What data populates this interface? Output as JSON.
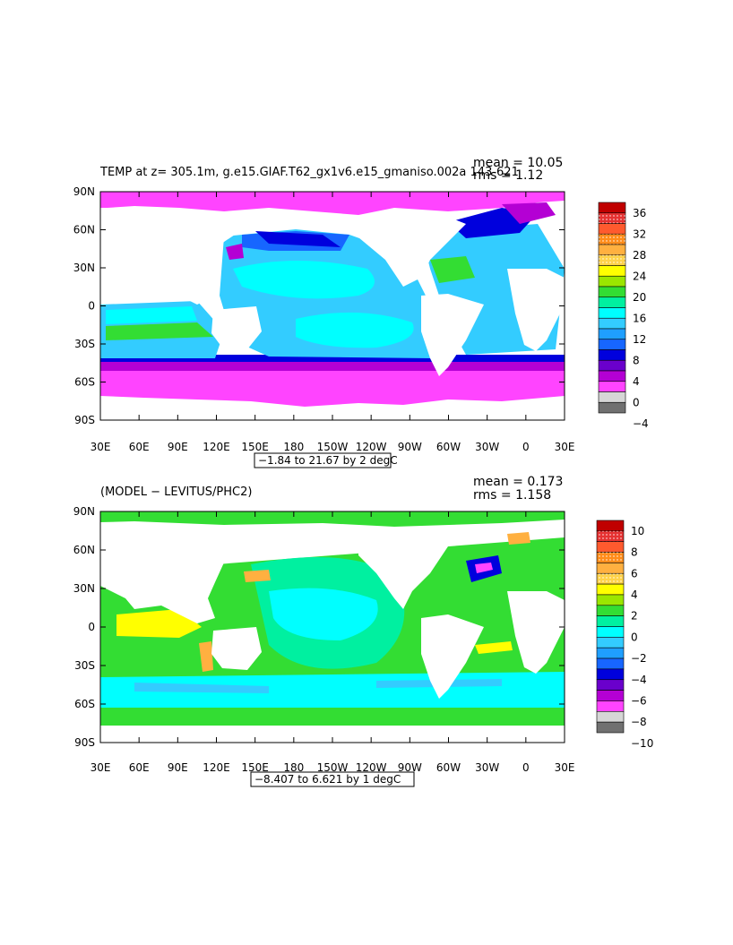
{
  "chart_data": [
    {
      "type": "heatmap",
      "title": "TEMP at z= 305.1m, g.e15.GIAF.T62_gx1v6.e15_gmaniso.002a 143-621",
      "stats": {
        "mean": "mean = 10.05",
        "rms": "rms = 1.12"
      },
      "x_ticks": [
        "30E",
        "60E",
        "90E",
        "120E",
        "150E",
        "180",
        "150W",
        "120W",
        "90W",
        "60W",
        "30W",
        "0",
        "30E"
      ],
      "y_ticks": [
        "90N",
        "60N",
        "30N",
        "0",
        "30S",
        "60S",
        "90S"
      ],
      "range_label": "−1.84 to 21.67 by 2 degC",
      "colorbar": {
        "labels": [
          "36",
          "32",
          "28",
          "24",
          "20",
          "16",
          "12",
          "8",
          "4",
          "0",
          "−4"
        ],
        "colors": [
          "#c00000",
          "#e53232",
          "#ff5a2e",
          "#ff8c1a",
          "#ffb040",
          "#ffd24a",
          "#ffff00",
          "#9be600",
          "#33dd33",
          "#00f0a0",
          "#00ffff",
          "#33ccff",
          "#1f9fff",
          "#1766ff",
          "#0000dd",
          "#6a00cc",
          "#b400d4",
          "#ff44ff",
          "#d6d6d6",
          "#707070"
        ]
      }
    },
    {
      "type": "heatmap",
      "title": "(MODEL − LEVITUS/PHC2)",
      "stats": {
        "mean": "mean = 0.173",
        "rms": "rms = 1.158"
      },
      "x_ticks": [
        "30E",
        "60E",
        "90E",
        "120E",
        "150E",
        "180",
        "150W",
        "120W",
        "90W",
        "60W",
        "30W",
        "0",
        "30E"
      ],
      "y_ticks": [
        "90N",
        "60N",
        "30N",
        "0",
        "30S",
        "60S",
        "90S"
      ],
      "range_label": "−8.407 to 6.621 by 1 degC",
      "colorbar": {
        "labels": [
          "10",
          "8",
          "6",
          "4",
          "2",
          "0",
          "−2",
          "−4",
          "−6",
          "−8",
          "−10"
        ],
        "colors": [
          "#c00000",
          "#e53232",
          "#ff5a2e",
          "#ff8c1a",
          "#ffb040",
          "#ffd24a",
          "#ffff00",
          "#9be600",
          "#33dd33",
          "#00f0a0",
          "#00ffff",
          "#33ccff",
          "#1f9fff",
          "#1766ff",
          "#0000dd",
          "#6a00cc",
          "#b400d4",
          "#ff44ff",
          "#d6d6d6",
          "#707070"
        ]
      }
    }
  ]
}
